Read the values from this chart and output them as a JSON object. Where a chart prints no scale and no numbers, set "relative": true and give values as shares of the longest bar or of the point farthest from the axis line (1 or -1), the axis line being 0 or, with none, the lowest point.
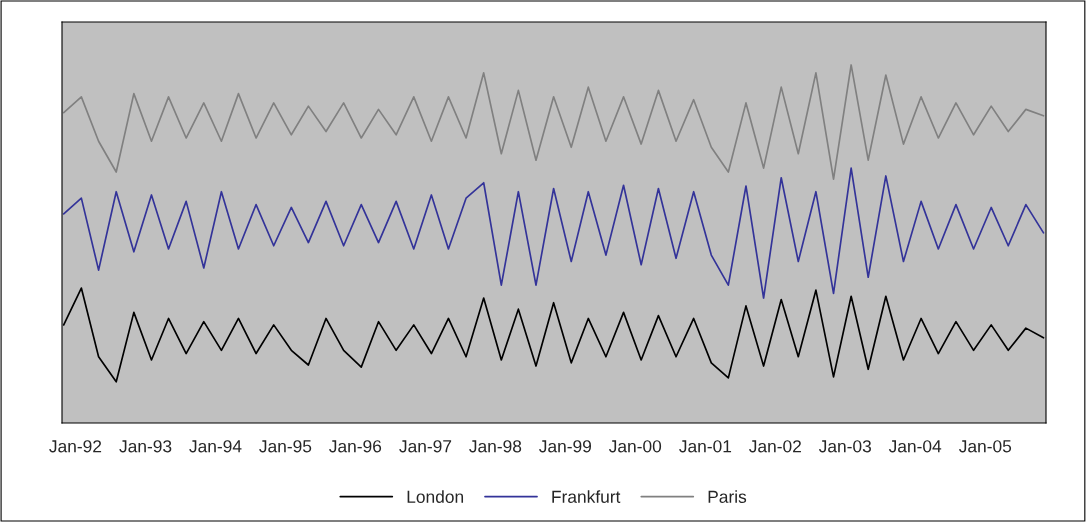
{
  "chart_data": {
    "type": "line",
    "relative": true,
    "legend": "bottom",
    "grid": false,
    "marker": "none",
    "line_style": "solid",
    "x": [
      "1991-11",
      "1992-02",
      "1992-05",
      "1992-08",
      "1992-11",
      "1993-02",
      "1993-05",
      "1993-08",
      "1993-11",
      "1994-02",
      "1994-05",
      "1994-08",
      "1994-11",
      "1995-02",
      "1995-05",
      "1995-08",
      "1995-11",
      "1996-02",
      "1996-05",
      "1996-08",
      "1996-11",
      "1997-02",
      "1997-05",
      "1997-08",
      "1997-11",
      "1998-02",
      "1998-05",
      "1998-08",
      "1998-11",
      "1999-02",
      "1999-05",
      "1999-08",
      "1999-11",
      "2000-02",
      "2000-05",
      "2000-08",
      "2000-11",
      "2001-02",
      "2001-05",
      "2001-08",
      "2001-11",
      "2002-02",
      "2002-05",
      "2002-08",
      "2002-11",
      "2003-02",
      "2003-05",
      "2003-08",
      "2003-11",
      "2004-02",
      "2004-05",
      "2004-08",
      "2004-11",
      "2005-02",
      "2005-05",
      "2005-08",
      "2005-11"
    ],
    "xlim": [
      "1991-10-23",
      "2005-11-14"
    ],
    "xticks": [
      {
        "value": "1992-01",
        "label": "Jan-92"
      },
      {
        "value": "1993-01",
        "label": "Jan-93"
      },
      {
        "value": "1994-01",
        "label": "Jan-94"
      },
      {
        "value": "1995-01",
        "label": "Jan-95"
      },
      {
        "value": "1996-01",
        "label": "Jan-96"
      },
      {
        "value": "1997-01",
        "label": "Jan-97"
      },
      {
        "value": "1998-01",
        "label": "Jan-98"
      },
      {
        "value": "1999-01",
        "label": "Jan-99"
      },
      {
        "value": "2000-01",
        "label": "Jan-00"
      },
      {
        "value": "2001-01",
        "label": "Jan-01"
      },
      {
        "value": "2002-01",
        "label": "Jan-02"
      },
      {
        "value": "2003-01",
        "label": "Jan-03"
      },
      {
        "value": "2004-01",
        "label": "Jan-04"
      },
      {
        "value": "2005-01",
        "label": "Jan-05"
      }
    ],
    "tick_labels": "x",
    "series": [
      {
        "name": "London",
        "color": "#000000",
        "values": [
          0.274,
          0.377,
          0.185,
          0.115,
          0.309,
          0.176,
          0.292,
          0.194,
          0.283,
          0.203,
          0.292,
          0.194,
          0.274,
          0.203,
          0.162,
          0.292,
          0.203,
          0.156,
          0.283,
          0.203,
          0.274,
          0.194,
          0.292,
          0.185,
          0.349,
          0.176,
          0.318,
          0.159,
          0.336,
          0.168,
          0.292,
          0.185,
          0.309,
          0.176,
          0.3,
          0.185,
          0.292,
          0.168,
          0.126,
          0.327,
          0.159,
          0.345,
          0.185,
          0.371,
          0.129,
          0.354,
          0.15,
          0.354,
          0.176,
          0.292,
          0.194,
          0.283,
          0.203,
          0.274,
          0.203,
          0.265,
          0.238
        ]
      },
      {
        "name": "Frankfurt",
        "color": "#333399",
        "values": [
          0.584,
          0.628,
          0.427,
          0.646,
          0.478,
          0.637,
          0.486,
          0.619,
          0.433,
          0.646,
          0.486,
          0.61,
          0.495,
          0.602,
          0.504,
          0.619,
          0.495,
          0.61,
          0.504,
          0.619,
          0.486,
          0.637,
          0.486,
          0.628,
          0.671,
          0.385,
          0.646,
          0.385,
          0.655,
          0.451,
          0.646,
          0.469,
          0.664,
          0.442,
          0.655,
          0.46,
          0.646,
          0.469,
          0.385,
          0.662,
          0.349,
          0.685,
          0.451,
          0.646,
          0.362,
          0.712,
          0.407,
          0.69,
          0.451,
          0.619,
          0.486,
          0.61,
          0.486,
          0.602,
          0.495,
          0.61,
          0.531
        ]
      },
      {
        "name": "Paris",
        "color": "#808080",
        "values": [
          0.867,
          0.911,
          0.787,
          0.701,
          0.92,
          0.787,
          0.911,
          0.796,
          0.894,
          0.787,
          0.92,
          0.796,
          0.894,
          0.805,
          0.885,
          0.814,
          0.894,
          0.796,
          0.876,
          0.805,
          0.911,
          0.787,
          0.911,
          0.796,
          0.978,
          0.752,
          0.929,
          0.734,
          0.911,
          0.77,
          0.938,
          0.787,
          0.911,
          0.779,
          0.929,
          0.787,
          0.903,
          0.77,
          0.701,
          0.894,
          0.712,
          0.938,
          0.752,
          0.978,
          0.681,
          1.0,
          0.734,
          0.972,
          0.779,
          0.911,
          0.796,
          0.894,
          0.805,
          0.885,
          0.814,
          0.876,
          0.858
        ]
      }
    ]
  }
}
